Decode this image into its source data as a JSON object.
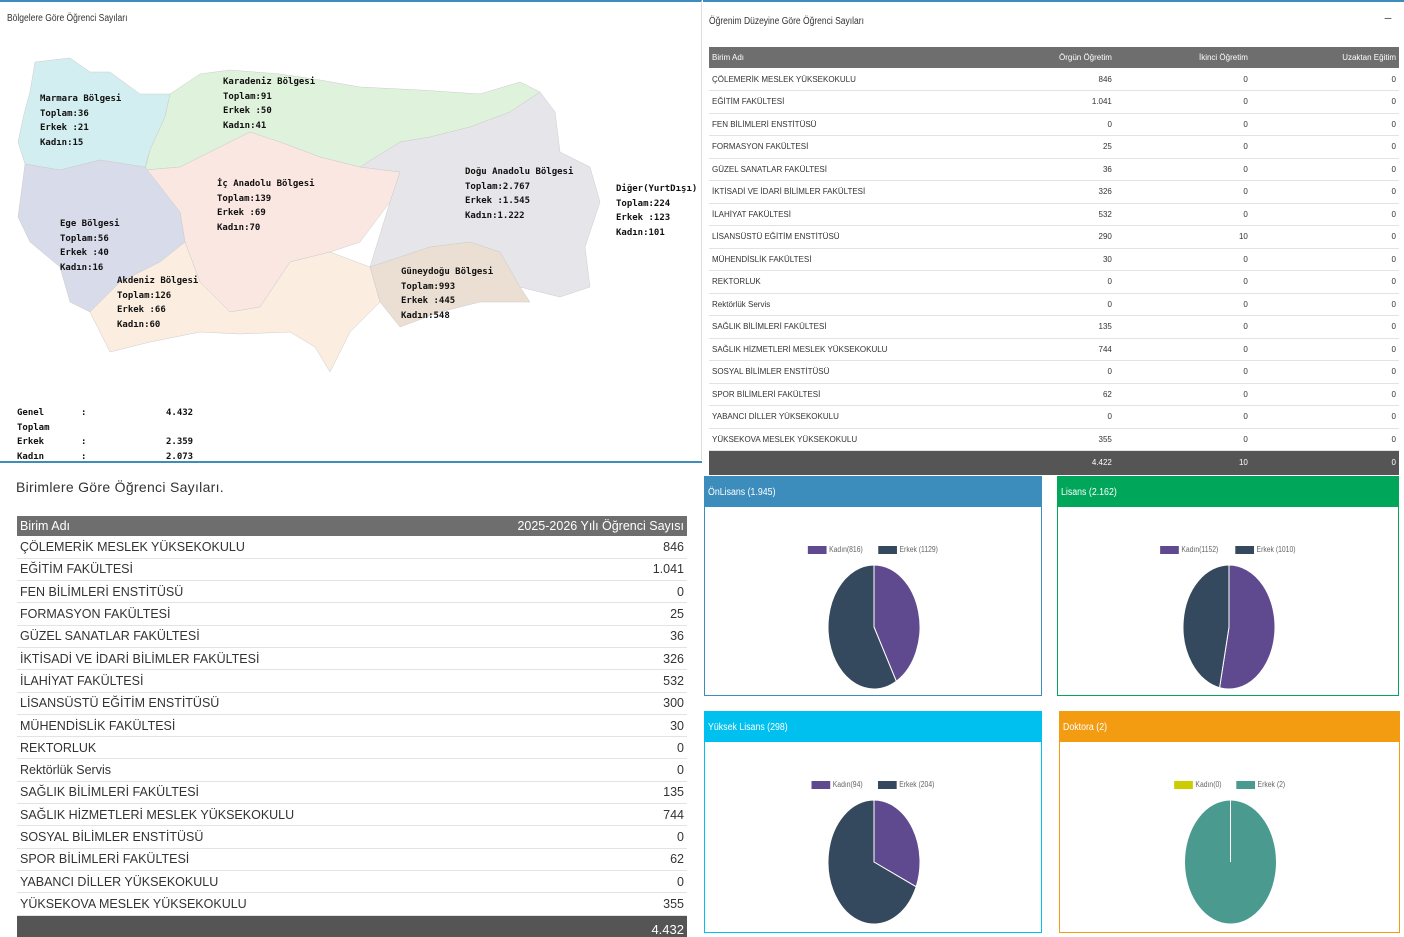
{
  "map_panel": {
    "title": "Bölgelere Göre Öğrenci Sayıları",
    "regions": [
      {
        "id": "marmara",
        "lines": [
          "Marmara Bölgesi",
          "Toplam:36",
          "Erkek :21",
          "Kadın:15"
        ],
        "color": "#d3eef0"
      },
      {
        "id": "karadeniz",
        "lines": [
          "Karadeniz Bölgesi",
          "Toplam:91",
          "Erkek :50",
          "Kadın:41"
        ],
        "color": "#dff3dc"
      },
      {
        "id": "ic-anadolu",
        "lines": [
          "İç Anadolu Bölgesi",
          "Toplam:139",
          "Erkek :69",
          "Kadın:70"
        ],
        "color": "#fbe7e2"
      },
      {
        "id": "dogu-anadolu",
        "lines": [
          "Doğu Anadolu Bölgesi",
          "Toplam:2.767",
          "Erkek :1.545",
          "Kadın:1.222"
        ],
        "color": "#e6e6ea"
      },
      {
        "id": "ege",
        "lines": [
          "Ege Bölgesi",
          "Toplam:56",
          "Erkek :40",
          "Kadın:16"
        ],
        "color": "#d8dbe9"
      },
      {
        "id": "akdeniz",
        "lines": [
          "Akdeniz Bölgesi",
          "Toplam:126",
          "Erkek :66",
          "Kadın:60"
        ],
        "color": "#fbeee0"
      },
      {
        "id": "guneydogu",
        "lines": [
          "Güneydoğu Bölgesi",
          "Toplam:993",
          "Erkek :445",
          "Kadın:548"
        ],
        "color": "#eadfd2"
      },
      {
        "id": "diger",
        "lines": [
          "Diğer(YurtDışı)",
          "Toplam:224",
          "Erkek :123",
          "Kadın:101"
        ],
        "color": "#ffffff"
      }
    ],
    "totals": [
      {
        "k": "Genel Toplam",
        "c": ":",
        "v": "4.432"
      },
      {
        "k": "Erkek",
        "c": ":",
        "v": "2.359"
      },
      {
        "k": "Kadın",
        "c": ":",
        "v": "2.073"
      }
    ]
  },
  "level_panel": {
    "title": "Öğrenim Düzeyine Göre Öğrenci Sayıları",
    "collapse_icon": "minus-icon",
    "columns": [
      "Birim Adı",
      "Örgün Öğretim",
      "İkinci Öğretim",
      "Uzaktan Eğitim"
    ],
    "rows": [
      [
        "ÇÖLEMERİK MESLEK YÜKSEKOKULU",
        "846",
        "0",
        "0"
      ],
      [
        "EĞİTİM FAKÜLTESİ",
        "1.041",
        "0",
        "0"
      ],
      [
        "FEN BİLİMLERİ ENSTİTÜSÜ",
        "0",
        "0",
        "0"
      ],
      [
        "FORMASYON FAKÜLTESİ",
        "25",
        "0",
        "0"
      ],
      [
        "GÜZEL SANATLAR FAKÜLTESİ",
        "36",
        "0",
        "0"
      ],
      [
        "İKTİSADİ VE İDARİ BİLİMLER FAKÜLTESİ",
        "326",
        "0",
        "0"
      ],
      [
        "İLAHİYAT FAKÜLTESİ",
        "532",
        "0",
        "0"
      ],
      [
        "LİSANSÜSTÜ EĞİTİM ENSTİTÜSÜ",
        "290",
        "10",
        "0"
      ],
      [
        "MÜHENDİSLİK FAKÜLTESİ",
        "30",
        "0",
        "0"
      ],
      [
        "REKTORLUK",
        "0",
        "0",
        "0"
      ],
      [
        "Rektörlük Servis",
        "0",
        "0",
        "0"
      ],
      [
        "SAĞLIK BİLİMLERİ FAKÜLTESİ",
        "135",
        "0",
        "0"
      ],
      [
        "SAĞLIK HİZMETLERİ MESLEK YÜKSEKOKULU",
        "744",
        "0",
        "0"
      ],
      [
        "SOSYAL BİLİMLER ENSTİTÜSÜ",
        "0",
        "0",
        "0"
      ],
      [
        "SPOR BİLİMLERİ FAKÜLTESİ",
        "62",
        "0",
        "0"
      ],
      [
        "YABANCI DİLLER YÜKSEKOKULU",
        "0",
        "0",
        "0"
      ],
      [
        "YÜKSEKOVA MESLEK YÜKSEKOKULU",
        "355",
        "0",
        "0"
      ]
    ],
    "footer": [
      "",
      "4.422",
      "10",
      "0"
    ]
  },
  "unit_panel": {
    "title": "Birimlere Göre Öğrenci Sayıları.",
    "columns": [
      "Birim Adı",
      "2025-2026 Yılı Öğrenci Sayısı"
    ],
    "rows": [
      [
        "ÇÖLEMERİK MESLEK YÜKSEKOKULU",
        "846"
      ],
      [
        "EĞİTİM FAKÜLTESİ",
        "1.041"
      ],
      [
        "FEN BİLİMLERİ ENSTİTÜSÜ",
        "0"
      ],
      [
        "FORMASYON FAKÜLTESİ",
        "25"
      ],
      [
        "GÜZEL SANATLAR FAKÜLTESİ",
        "36"
      ],
      [
        "İKTİSADİ VE İDARİ BİLİMLER FAKÜLTESİ",
        "326"
      ],
      [
        "İLAHİYAT FAKÜLTESİ",
        "532"
      ],
      [
        "LİSANSÜSTÜ EĞİTİM ENSTİTÜSÜ",
        "300"
      ],
      [
        "MÜHENDİSLİK FAKÜLTESİ",
        "30"
      ],
      [
        "REKTORLUK",
        "0"
      ],
      [
        "Rektörlük Servis",
        "0"
      ],
      [
        "SAĞLIK BİLİMLERİ FAKÜLTESİ",
        "135"
      ],
      [
        "SAĞLIK HİZMETLERİ MESLEK YÜKSEKOKULU",
        "744"
      ],
      [
        "SOSYAL BİLİMLER ENSTİTÜSÜ",
        "0"
      ],
      [
        "SPOR BİLİMLERİ FAKÜLTESİ",
        "62"
      ],
      [
        "YABANCI DİLLER YÜKSEKOKULU",
        "0"
      ],
      [
        "YÜKSEKOVA MESLEK YÜKSEKOKULU",
        "355"
      ]
    ],
    "footer": "4.432"
  },
  "chart_data": [
    {
      "type": "pie",
      "title": "ÖnLisans (1.945)",
      "header_color": "#3c8dbc",
      "categories": [
        "Kadın(816)",
        "Erkek (1129)"
      ],
      "values": [
        816,
        1129
      ],
      "colors": [
        "#604a8f",
        "#34495e"
      ]
    },
    {
      "type": "pie",
      "title": "Lisans (2.162)",
      "header_color": "#00a65a",
      "categories": [
        "Kadın(1152)",
        "Erkek (1010)"
      ],
      "values": [
        1152,
        1010
      ],
      "colors": [
        "#604a8f",
        "#34495e"
      ]
    },
    {
      "type": "pie",
      "title": "Yüksek Lisans (298)",
      "header_color": "#00c0ef",
      "categories": [
        "Kadın(94)",
        "Erkek (204)"
      ],
      "values": [
        94,
        204
      ],
      "colors": [
        "#604a8f",
        "#34495e"
      ]
    },
    {
      "type": "pie",
      "title": "Doktora (2)",
      "header_color": "#f39c12",
      "categories": [
        "Kadın(0)",
        "Erkek (2)"
      ],
      "values": [
        0,
        2
      ],
      "colors": [
        "#cccc00",
        "#4a9a8f"
      ]
    }
  ]
}
